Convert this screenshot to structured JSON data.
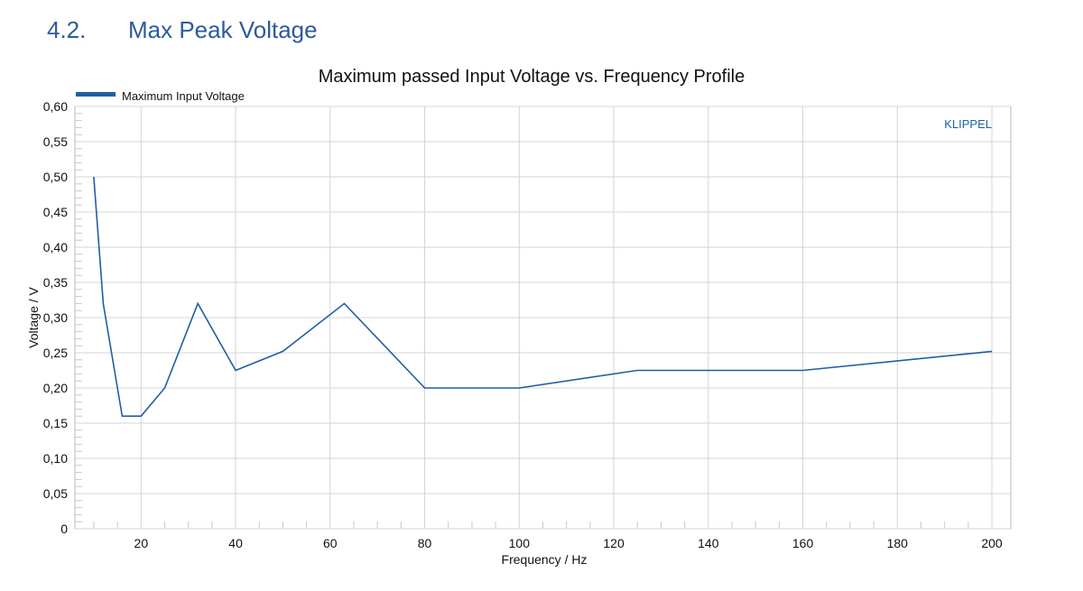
{
  "section": {
    "number": "4.2.",
    "title": "Max Peak Voltage"
  },
  "colors": {
    "heading": "#2e5a9e",
    "series": "#1f5fa5",
    "grid": "#d4d4d4",
    "axis": "#b8b8b8"
  },
  "chart_data": {
    "type": "line",
    "title": "Maximum passed Input Voltage vs. Frequency Profile",
    "xlabel": "Frequency / Hz",
    "ylabel": "Voltage / V",
    "xlim": [
      6,
      204
    ],
    "ylim": [
      0,
      0.6
    ],
    "xticks": [
      20,
      40,
      60,
      80,
      100,
      120,
      140,
      160,
      180,
      200
    ],
    "xtick_labels": [
      "20",
      "40",
      "60",
      "80",
      "100",
      "120",
      "140",
      "160",
      "180",
      "200"
    ],
    "yticks": [
      0,
      0.05,
      0.1,
      0.15,
      0.2,
      0.25,
      0.3,
      0.35,
      0.4,
      0.45,
      0.5,
      0.55,
      0.6
    ],
    "ytick_labels": [
      "0",
      "0,05",
      "0,10",
      "0,15",
      "0,20",
      "0,25",
      "0,30",
      "0,35",
      "0,40",
      "0,45",
      "0,50",
      "0,55",
      "0,60"
    ],
    "grid": true,
    "legend_position": "top-left",
    "annotation": "KLIPPEL",
    "series": [
      {
        "name": "Maximum Input Voltage",
        "x": [
          10,
          12,
          16,
          20,
          25,
          32,
          40,
          50,
          63,
          80,
          100,
          125,
          160,
          200
        ],
        "y": [
          0.5,
          0.32,
          0.16,
          0.16,
          0.2,
          0.32,
          0.225,
          0.252,
          0.32,
          0.2,
          0.2,
          0.225,
          0.225,
          0.252
        ]
      }
    ]
  }
}
